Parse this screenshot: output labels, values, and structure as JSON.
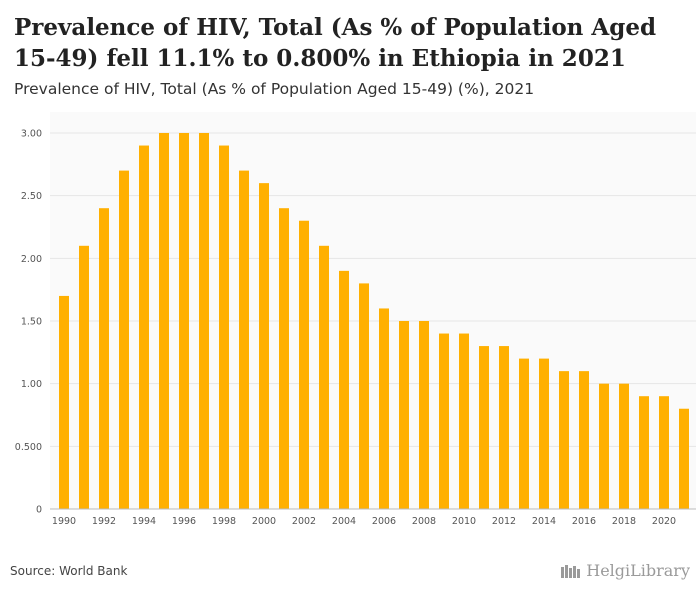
{
  "header": {
    "title": "Prevalence of HIV, Total (As % of Population Aged 15-49) fell 11.1% to 0.800% in Ethiopia in 2021",
    "subtitle": "Prevalence of HIV, Total (As % of Population Aged 15-49) (%), 2021"
  },
  "footer": {
    "source": "Source: World Bank",
    "logo": "HelgiLibrary"
  },
  "colors": {
    "bar": "#FFB000",
    "grid": "#e6e6e6",
    "plot_bg": "#fafafa"
  },
  "chart_data": {
    "type": "bar",
    "title": "Prevalence of HIV, Total (As % of Population Aged 15-49) (%), 2021",
    "xlabel": "",
    "ylabel": "",
    "ylim": [
      0,
      3.0
    ],
    "yticks": [
      "0",
      "0.500",
      "1.00",
      "1.50",
      "2.00",
      "2.50",
      "3.00"
    ],
    "ytick_values": [
      0,
      0.5,
      1.0,
      1.5,
      2.0,
      2.5,
      3.0
    ],
    "categories": [
      "1990",
      "1991",
      "1992",
      "1993",
      "1994",
      "1995",
      "1996",
      "1997",
      "1998",
      "1999",
      "2000",
      "2001",
      "2002",
      "2003",
      "2004",
      "2005",
      "2006",
      "2007",
      "2008",
      "2009",
      "2010",
      "2011",
      "2012",
      "2013",
      "2014",
      "2015",
      "2016",
      "2017",
      "2018",
      "2019",
      "2020",
      "2021"
    ],
    "xtick_labels": [
      "1990",
      "1992",
      "1994",
      "1996",
      "1998",
      "2000",
      "2002",
      "2004",
      "2006",
      "2008",
      "2010",
      "2012",
      "2014",
      "2016",
      "2018",
      "2020"
    ],
    "values": [
      1.7,
      2.1,
      2.4,
      2.7,
      2.9,
      3.0,
      3.0,
      3.0,
      2.9,
      2.7,
      2.6,
      2.4,
      2.3,
      2.1,
      1.9,
      1.8,
      1.6,
      1.5,
      1.5,
      1.4,
      1.4,
      1.3,
      1.3,
      1.2,
      1.2,
      1.1,
      1.1,
      1.0,
      1.0,
      0.9,
      0.9,
      0.8
    ],
    "grid": true,
    "legend": "none"
  }
}
